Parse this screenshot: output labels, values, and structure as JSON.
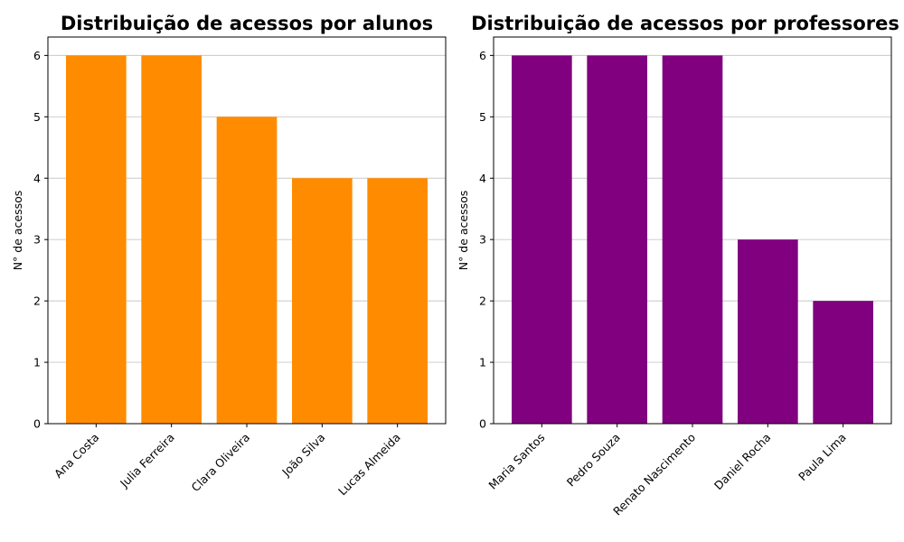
{
  "chart_data": [
    {
      "type": "bar",
      "title": "Distribuição de acessos por alunos",
      "xlabel": "",
      "ylabel": "N° de acessos",
      "categories": [
        "Ana Costa",
        "Julia Ferreira",
        "Clara Oliveira",
        "João Silva",
        "Lucas Almeida"
      ],
      "values": [
        6,
        6,
        5,
        4,
        4
      ],
      "yticks": [
        0,
        1,
        2,
        3,
        4,
        5,
        6
      ],
      "ylim": [
        0,
        6.3
      ],
      "grid": "y",
      "color": "#ff8c00"
    },
    {
      "type": "bar",
      "title": "Distribuição de acessos por professores",
      "xlabel": "",
      "ylabel": "N° de acessos",
      "categories": [
        "Maria Santos",
        "Pedro Souza",
        "Renato Nascimento",
        "Daniel Rocha",
        "Paula Lima"
      ],
      "values": [
        6,
        6,
        6,
        3,
        2
      ],
      "yticks": [
        0,
        1,
        2,
        3,
        4,
        5,
        6
      ],
      "ylim": [
        0,
        6.3
      ],
      "grid": "y",
      "color": "#800080"
    }
  ]
}
